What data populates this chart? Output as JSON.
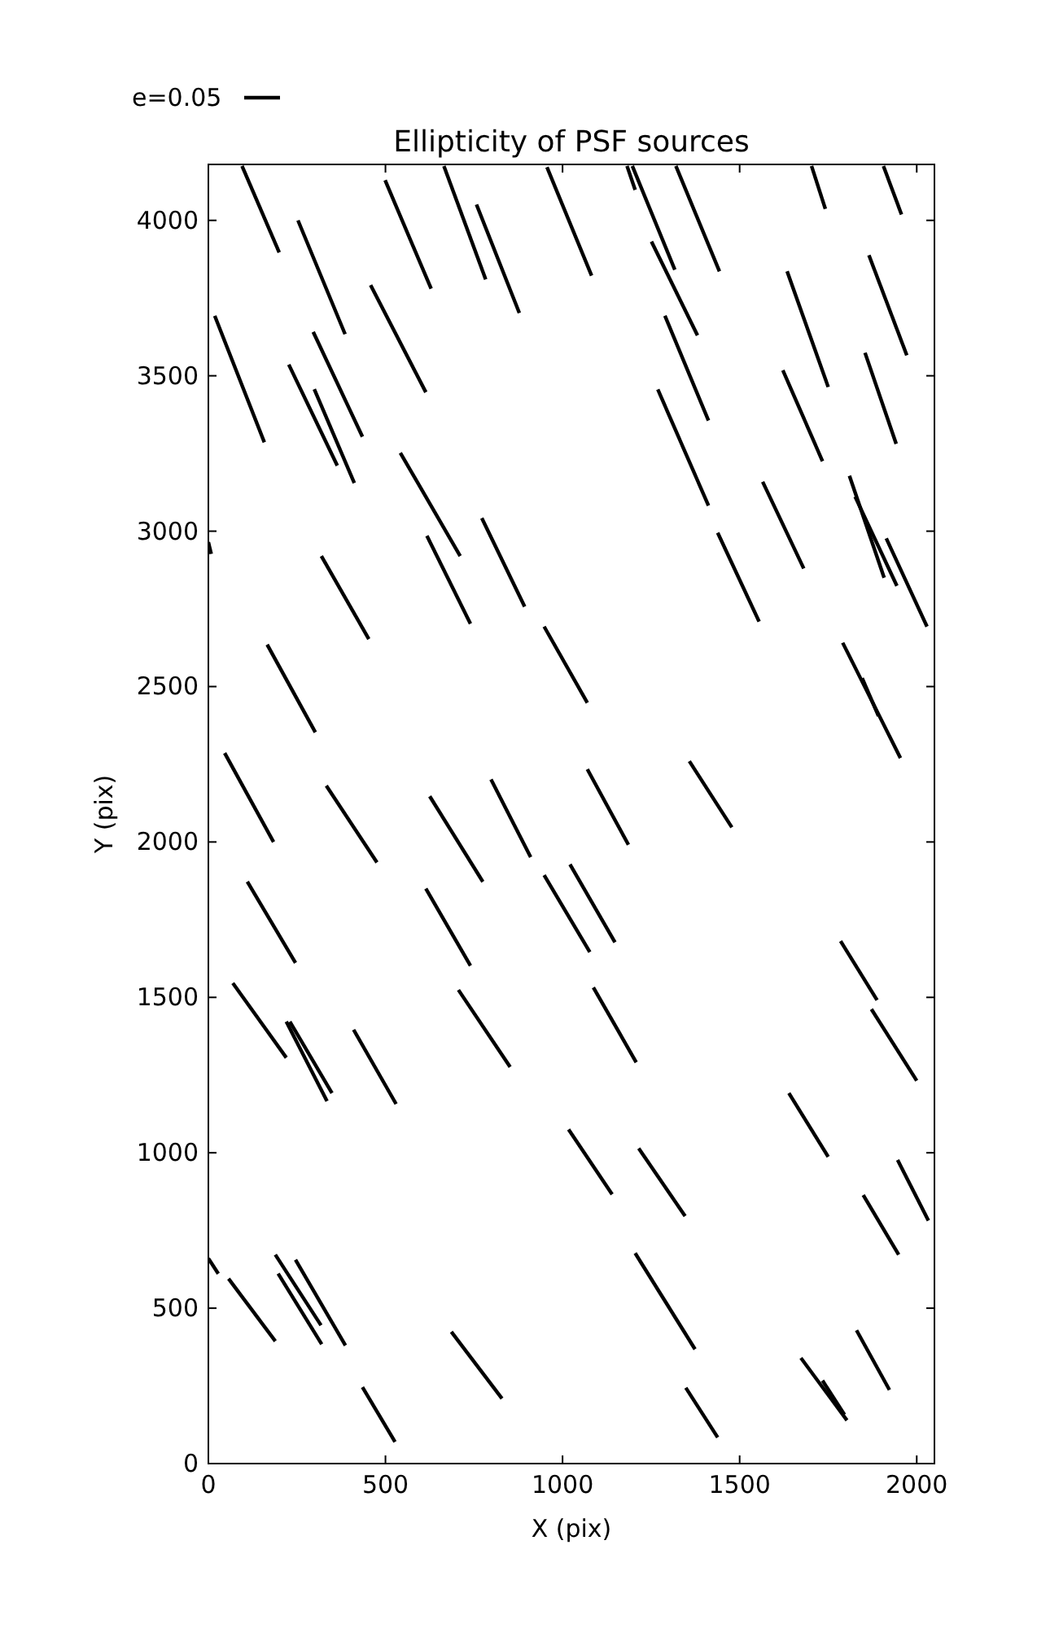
{
  "chart_data": {
    "type": "line",
    "title": "Ellipticity of PSF sources",
    "xlabel": "X (pix)",
    "ylabel": "Y (pix)",
    "annotations": [
      "e=0.05"
    ],
    "xlim": [
      0,
      2050
    ],
    "ylim": [
      0,
      4180
    ],
    "xticks": [
      0,
      500,
      1000,
      1500,
      2000
    ],
    "yticks": [
      0,
      500,
      1000,
      1500,
      2000,
      2500,
      3000,
      3500,
      4000
    ],
    "marker": "none",
    "line_style": "solid",
    "grid": false,
    "series": [
      {
        "color": "#000000",
        "x": [
          95,
          200
        ],
        "values": [
          4175,
          3897
        ]
      },
      {
        "color": "#000000",
        "x": [
          253,
          386
        ],
        "values": [
          4000,
          3634
        ]
      },
      {
        "color": "#000000",
        "x": [
          499,
          629
        ],
        "values": [
          4129,
          3780
        ]
      },
      {
        "color": "#000000",
        "x": [
          665,
          783
        ],
        "values": [
          4175,
          3810
        ]
      },
      {
        "color": "#000000",
        "x": [
          757,
          878
        ],
        "values": [
          4051,
          3702
        ]
      },
      {
        "color": "#000000",
        "x": [
          956,
          1082
        ],
        "values": [
          4171,
          3822
        ]
      },
      {
        "color": "#000000",
        "x": [
          1182,
          1205
        ],
        "values": [
          4175,
          4098
        ]
      },
      {
        "color": "#000000",
        "x": [
          1197,
          1317
        ],
        "values": [
          4175,
          3841
        ]
      },
      {
        "color": "#000000",
        "x": [
          1320,
          1443
        ],
        "values": [
          4175,
          3836
        ]
      },
      {
        "color": "#000000",
        "x": [
          1703,
          1742
        ],
        "values": [
          4175,
          4037
        ]
      },
      {
        "color": "#000000",
        "x": [
          1906,
          1957
        ],
        "values": [
          4175,
          4019
        ]
      },
      {
        "color": "#000000",
        "x": [
          1251,
          1381
        ],
        "values": [
          3932,
          3630
        ]
      },
      {
        "color": "#000000",
        "x": [
          1634,
          1750
        ],
        "values": [
          3836,
          3464
        ]
      },
      {
        "color": "#000000",
        "x": [
          1865,
          1972
        ],
        "values": [
          3888,
          3566
        ]
      },
      {
        "color": "#000000",
        "x": [
          18,
          158
        ],
        "values": [
          3693,
          3286
        ]
      },
      {
        "color": "#000000",
        "x": [
          296,
          435
        ],
        "values": [
          3641,
          3304
        ]
      },
      {
        "color": "#000000",
        "x": [
          227,
          364
        ],
        "values": [
          3536,
          3211
        ]
      },
      {
        "color": "#000000",
        "x": [
          299,
          412
        ],
        "values": [
          3457,
          3155
        ]
      },
      {
        "color": "#000000",
        "x": [
          458,
          614
        ],
        "values": [
          3792,
          3447
        ]
      },
      {
        "color": "#000000",
        "x": [
          542,
          711
        ],
        "values": [
          3252,
          2920
        ]
      },
      {
        "color": "#000000",
        "x": [
          1289,
          1412
        ],
        "values": [
          3693,
          3356
        ]
      },
      {
        "color": "#000000",
        "x": [
          1269,
          1412
        ],
        "values": [
          3456,
          3082
        ]
      },
      {
        "color": "#000000",
        "x": [
          1622,
          1734
        ],
        "values": [
          3518,
          3225
        ]
      },
      {
        "color": "#000000",
        "x": [
          1854,
          1942
        ],
        "values": [
          3574,
          3281
        ]
      },
      {
        "color": "#000000",
        "x": [
          1565,
          1681
        ],
        "values": [
          3159,
          2880
        ]
      },
      {
        "color": "#000000",
        "x": [
          1810,
          1908
        ],
        "values": [
          3178,
          2850
        ]
      },
      {
        "color": "#000000",
        "x": [
          1826,
          1944
        ],
        "values": [
          3111,
          2824
        ]
      },
      {
        "color": "#000000",
        "x": [
          1914,
          2029
        ],
        "values": [
          2977,
          2693
        ]
      },
      {
        "color": "#000000",
        "x": [
          0,
          8
        ],
        "values": [
          2965,
          2927
        ]
      },
      {
        "color": "#000000",
        "x": [
          319,
          453
        ],
        "values": [
          2920,
          2653
        ]
      },
      {
        "color": "#000000",
        "x": [
          617,
          740
        ],
        "values": [
          2985,
          2702
        ]
      },
      {
        "color": "#000000",
        "x": [
          772,
          893
        ],
        "values": [
          3042,
          2757
        ]
      },
      {
        "color": "#000000",
        "x": [
          1438,
          1555
        ],
        "values": [
          2995,
          2709
        ]
      },
      {
        "color": "#000000",
        "x": [
          166,
          302
        ],
        "values": [
          2635,
          2353
        ]
      },
      {
        "color": "#000000",
        "x": [
          948,
          1070
        ],
        "values": [
          2693,
          2448
        ]
      },
      {
        "color": "#000000",
        "x": [
          1791,
          1954
        ],
        "values": [
          2641,
          2270
        ]
      },
      {
        "color": "#000000",
        "x": [
          1846,
          1892
        ],
        "values": [
          2527,
          2405
        ]
      },
      {
        "color": "#000000",
        "x": [
          46,
          184
        ],
        "values": [
          2286,
          2000
        ]
      },
      {
        "color": "#000000",
        "x": [
          333,
          476
        ],
        "values": [
          2181,
          1934
        ]
      },
      {
        "color": "#000000",
        "x": [
          625,
          775
        ],
        "values": [
          2147,
          1872
        ]
      },
      {
        "color": "#000000",
        "x": [
          798,
          910
        ],
        "values": [
          2201,
          1951
        ]
      },
      {
        "color": "#000000",
        "x": [
          1070,
          1186
        ],
        "values": [
          2234,
          1991
        ]
      },
      {
        "color": "#000000",
        "x": [
          1358,
          1478
        ],
        "values": [
          2260,
          2047
        ]
      },
      {
        "color": "#000000",
        "x": [
          110,
          246
        ],
        "values": [
          1872,
          1611
        ]
      },
      {
        "color": "#000000",
        "x": [
          614,
          740
        ],
        "values": [
          1850,
          1602
        ]
      },
      {
        "color": "#000000",
        "x": [
          948,
          1077
        ],
        "values": [
          1893,
          1646
        ]
      },
      {
        "color": "#000000",
        "x": [
          1021,
          1148
        ],
        "values": [
          1928,
          1677
        ]
      },
      {
        "color": "#000000",
        "x": [
          1785,
          1888
        ],
        "values": [
          1681,
          1491
        ]
      },
      {
        "color": "#000000",
        "x": [
          0,
          28
        ],
        "values": [
          660,
          611
        ]
      },
      {
        "color": "#000000",
        "x": [
          69,
          220
        ],
        "values": [
          1546,
          1306
        ]
      },
      {
        "color": "#000000",
        "x": [
          706,
          852
        ],
        "values": [
          1524,
          1276
        ]
      },
      {
        "color": "#000000",
        "x": [
          1087,
          1208
        ],
        "values": [
          1532,
          1291
        ]
      },
      {
        "color": "#000000",
        "x": [
          220,
          335
        ],
        "values": [
          1422,
          1166
        ]
      },
      {
        "color": "#000000",
        "x": [
          230,
          349
        ],
        "values": [
          1422,
          1192
        ]
      },
      {
        "color": "#000000",
        "x": [
          410,
          530
        ],
        "values": [
          1396,
          1157
        ]
      },
      {
        "color": "#000000",
        "x": [
          1872,
          2000
        ],
        "values": [
          1462,
          1232
        ]
      },
      {
        "color": "#000000",
        "x": [
          1639,
          1750
        ],
        "values": [
          1192,
          987
        ]
      },
      {
        "color": "#000000",
        "x": [
          1017,
          1140
        ],
        "values": [
          1075,
          866
        ]
      },
      {
        "color": "#000000",
        "x": [
          1215,
          1346
        ],
        "values": [
          1014,
          796
        ]
      },
      {
        "color": "#000000",
        "x": [
          1946,
          2033
        ],
        "values": [
          977,
          782
        ]
      },
      {
        "color": "#000000",
        "x": [
          1849,
          1949
        ],
        "values": [
          864,
          672
        ]
      },
      {
        "color": "#000000",
        "x": [
          57,
          189
        ],
        "values": [
          595,
          394
        ]
      },
      {
        "color": "#000000",
        "x": [
          189,
          318
        ],
        "values": [
          672,
          445
        ]
      },
      {
        "color": "#000000",
        "x": [
          197,
          320
        ],
        "values": [
          611,
          384
        ]
      },
      {
        "color": "#000000",
        "x": [
          246,
          387
        ],
        "values": [
          656,
          380
        ]
      },
      {
        "color": "#000000",
        "x": [
          686,
          829
        ],
        "values": [
          424,
          209
        ]
      },
      {
        "color": "#000000",
        "x": [
          435,
          527
        ],
        "values": [
          246,
          70
        ]
      },
      {
        "color": "#000000",
        "x": [
          1205,
          1374
        ],
        "values": [
          677,
          368
        ]
      },
      {
        "color": "#000000",
        "x": [
          1348,
          1438
        ],
        "values": [
          244,
          84
        ]
      },
      {
        "color": "#000000",
        "x": [
          1673,
          1803
        ],
        "values": [
          340,
          139
        ]
      },
      {
        "color": "#000000",
        "x": [
          1734,
          1796
        ],
        "values": [
          267,
          157
        ]
      },
      {
        "color": "#000000",
        "x": [
          1830,
          1923
        ],
        "values": [
          429,
          237
        ]
      }
    ]
  }
}
